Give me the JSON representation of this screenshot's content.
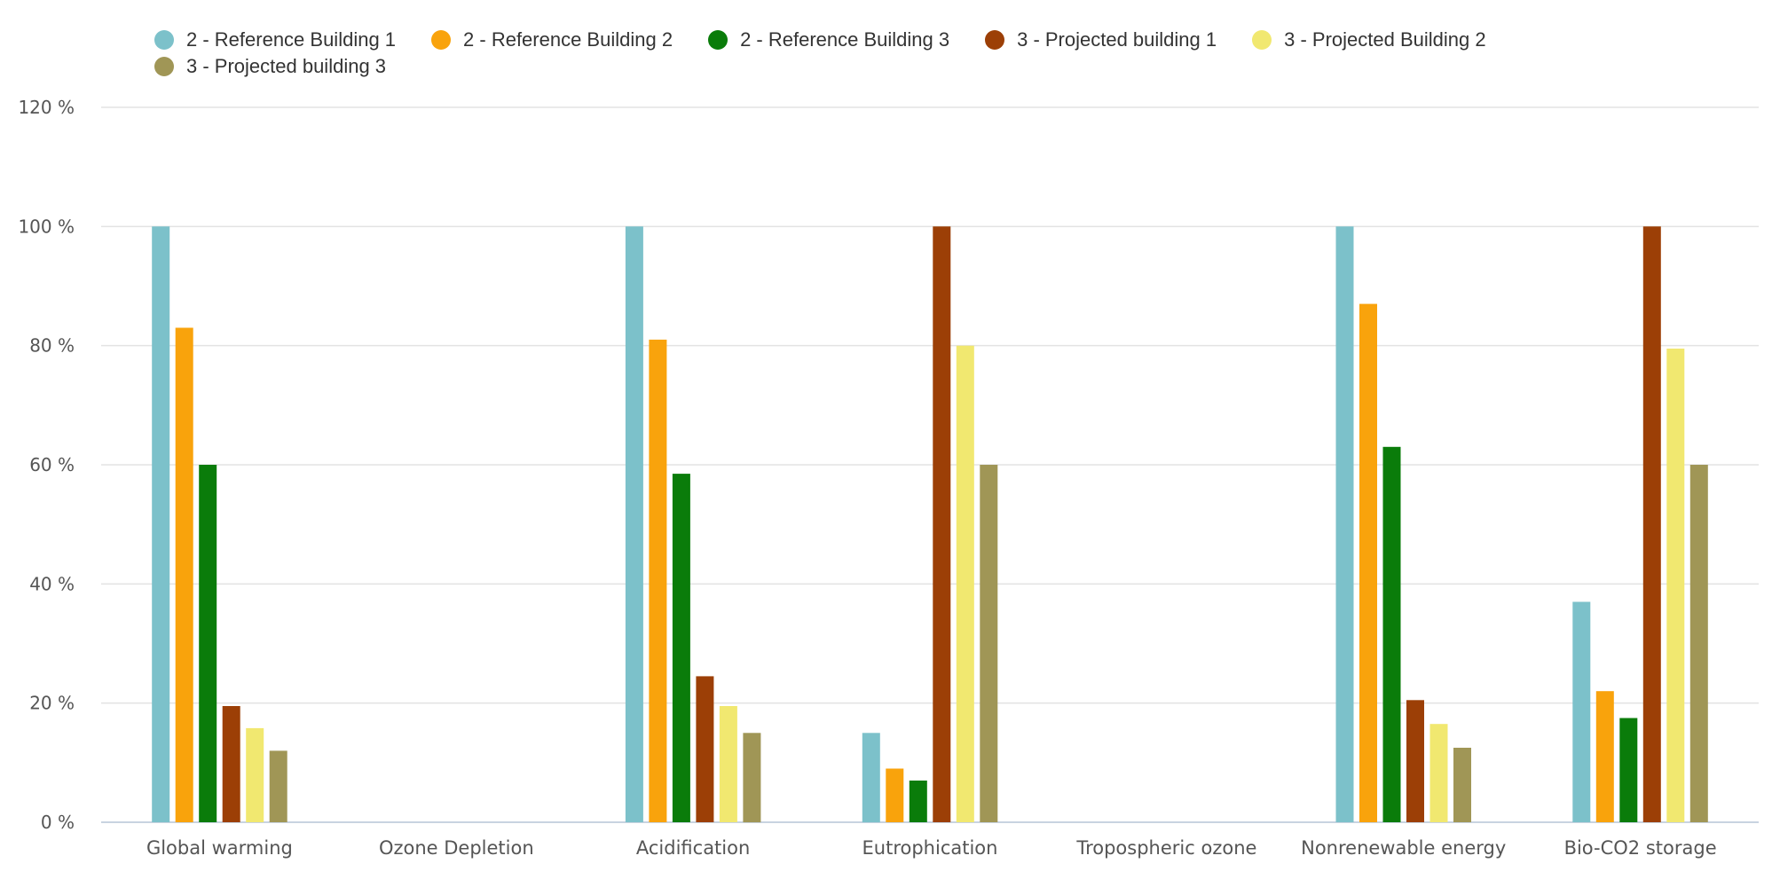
{
  "chart_data": {
    "type": "bar",
    "categories": [
      "Global warming",
      "Ozone Depletion",
      "Acidification",
      "Eutrophication",
      "Tropospheric ozone",
      "Nonrenewable energy",
      "Bio-CO2 storage"
    ],
    "series": [
      {
        "name": "2 - Reference Building 1",
        "color": "#7cc1ca",
        "values": [
          100,
          0,
          100,
          15,
          0,
          100,
          37
        ]
      },
      {
        "name": "2 - Reference Building 2",
        "color": "#f9a30c",
        "values": [
          83,
          0,
          81,
          9,
          0,
          87,
          22
        ]
      },
      {
        "name": "2 - Reference Building 3",
        "color": "#0a7c0a",
        "values": [
          60,
          0,
          58.5,
          7,
          0,
          63,
          17.5
        ]
      },
      {
        "name": "3 - Projected building 1",
        "color": "#9c3f06",
        "values": [
          19.5,
          0,
          24.5,
          100,
          0,
          20.5,
          100
        ]
      },
      {
        "name": "3 - Projected Building 2",
        "color": "#f1e870",
        "values": [
          15.8,
          0,
          19.5,
          80,
          0,
          16.5,
          79.5
        ]
      },
      {
        "name": "3 - Projected building 3",
        "color": "#a09656",
        "values": [
          12,
          0,
          15,
          60,
          0,
          12.5,
          60
        ]
      }
    ],
    "ylim": [
      0,
      120
    ],
    "yticks": [
      "0 %",
      "20 %",
      "40 %",
      "60 %",
      "80 %",
      "100 %",
      "120 %"
    ],
    "ytick_values": [
      0,
      20,
      40,
      60,
      80,
      100,
      120
    ],
    "grid": true,
    "legend_position": "top-left"
  }
}
